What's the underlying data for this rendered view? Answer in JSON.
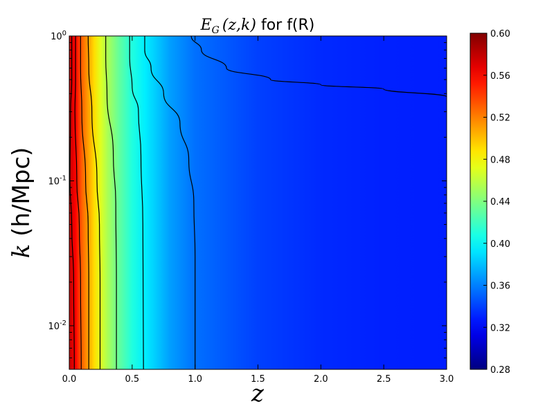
{
  "chart_data": {
    "type": "heatmap",
    "title": "E_G (z,k) for f(R)",
    "title_math": "E",
    "title_sub": "G",
    "title_args": "(z,k)",
    "title_rest": " for f(R)",
    "xlabel": "z",
    "ylabel_math": "k",
    "ylabel_rest": " (h/Mpc)",
    "x_range": [
      0.0,
      3.0
    ],
    "y_range": [
      0.005,
      1.0
    ],
    "y_scale": "log",
    "x_ticks": [
      {
        "value": 0.0,
        "label": "0.0"
      },
      {
        "value": 0.5,
        "label": "0.5"
      },
      {
        "value": 1.0,
        "label": "1.0"
      },
      {
        "value": 1.5,
        "label": "1.5"
      },
      {
        "value": 2.0,
        "label": "2.0"
      },
      {
        "value": 2.5,
        "label": "2.5"
      },
      {
        "value": 3.0,
        "label": "3.0"
      }
    ],
    "y_ticks": [
      {
        "value": 0.01,
        "base": "10",
        "exp": "-2"
      },
      {
        "value": 0.1,
        "base": "10",
        "exp": "-1"
      },
      {
        "value": 1.0,
        "base": "10",
        "exp": "0"
      }
    ],
    "colorbar": {
      "colormap": "jet",
      "range": [
        0.28,
        0.6
      ],
      "ticks": [
        "0.60",
        "0.56",
        "0.52",
        "0.48",
        "0.44",
        "0.40",
        "0.36",
        "0.32",
        "0.28"
      ]
    },
    "z_value_at_z": {
      "z": [
        0.0,
        0.05,
        0.1,
        0.15,
        0.2,
        0.25,
        0.3,
        0.4,
        0.5,
        0.6,
        0.8,
        1.0,
        1.5,
        2.0,
        2.5,
        3.0
      ],
      "value": [
        0.58,
        0.56,
        0.53,
        0.51,
        0.49,
        0.47,
        0.455,
        0.43,
        0.41,
        0.395,
        0.37,
        0.355,
        0.34,
        0.333,
        0.33,
        0.329
      ]
    },
    "contours": [
      {
        "points": [
          [
            0.02,
            1.0
          ],
          [
            0.02,
            0.5
          ],
          [
            0.01,
            0.3
          ],
          [
            0.005,
            0.1
          ],
          [
            0.02,
            0.05
          ],
          [
            0.035,
            0.02
          ],
          [
            0.04,
            0.005
          ]
        ]
      },
      {
        "points": [
          [
            0.05,
            1.0
          ],
          [
            0.05,
            0.5
          ],
          [
            0.045,
            0.3
          ],
          [
            0.06,
            0.1
          ],
          [
            0.08,
            0.05
          ],
          [
            0.09,
            0.02
          ],
          [
            0.095,
            0.005
          ]
        ]
      },
      {
        "points": [
          [
            0.09,
            1.0
          ],
          [
            0.09,
            0.6
          ],
          [
            0.1,
            0.3
          ],
          [
            0.13,
            0.1
          ],
          [
            0.15,
            0.05
          ],
          [
            0.155,
            0.02
          ],
          [
            0.155,
            0.005
          ]
        ]
      },
      {
        "points": [
          [
            0.15,
            1.0
          ],
          [
            0.155,
            0.6
          ],
          [
            0.18,
            0.3
          ],
          [
            0.22,
            0.1
          ],
          [
            0.24,
            0.05
          ],
          [
            0.245,
            0.02
          ],
          [
            0.245,
            0.005
          ]
        ]
      },
      {
        "points": [
          [
            0.29,
            1.0
          ],
          [
            0.29,
            0.7
          ],
          [
            0.3,
            0.4
          ],
          [
            0.35,
            0.15
          ],
          [
            0.37,
            0.07
          ],
          [
            0.375,
            0.02
          ],
          [
            0.375,
            0.005
          ]
        ]
      },
      {
        "points": [
          [
            0.48,
            1.0
          ],
          [
            0.48,
            0.7
          ],
          [
            0.5,
            0.45
          ],
          [
            0.55,
            0.3
          ],
          [
            0.57,
            0.15
          ],
          [
            0.585,
            0.05
          ],
          [
            0.59,
            0.005
          ]
        ]
      },
      {
        "points": [
          [
            0.97,
            1.0
          ],
          [
            1.05,
            0.8
          ],
          [
            1.25,
            0.6
          ],
          [
            1.6,
            0.5
          ],
          [
            2.0,
            0.46
          ],
          [
            2.5,
            0.43
          ],
          [
            3.0,
            0.38
          ]
        ]
      },
      {
        "points": [
          [
            0.6,
            1.0
          ],
          [
            0.6,
            0.8
          ],
          [
            0.65,
            0.6
          ],
          [
            0.75,
            0.4
          ],
          [
            0.88,
            0.25
          ],
          [
            0.95,
            0.14
          ],
          [
            0.99,
            0.07
          ],
          [
            1.0,
            0.03
          ],
          [
            1.0,
            0.005
          ]
        ]
      }
    ]
  }
}
